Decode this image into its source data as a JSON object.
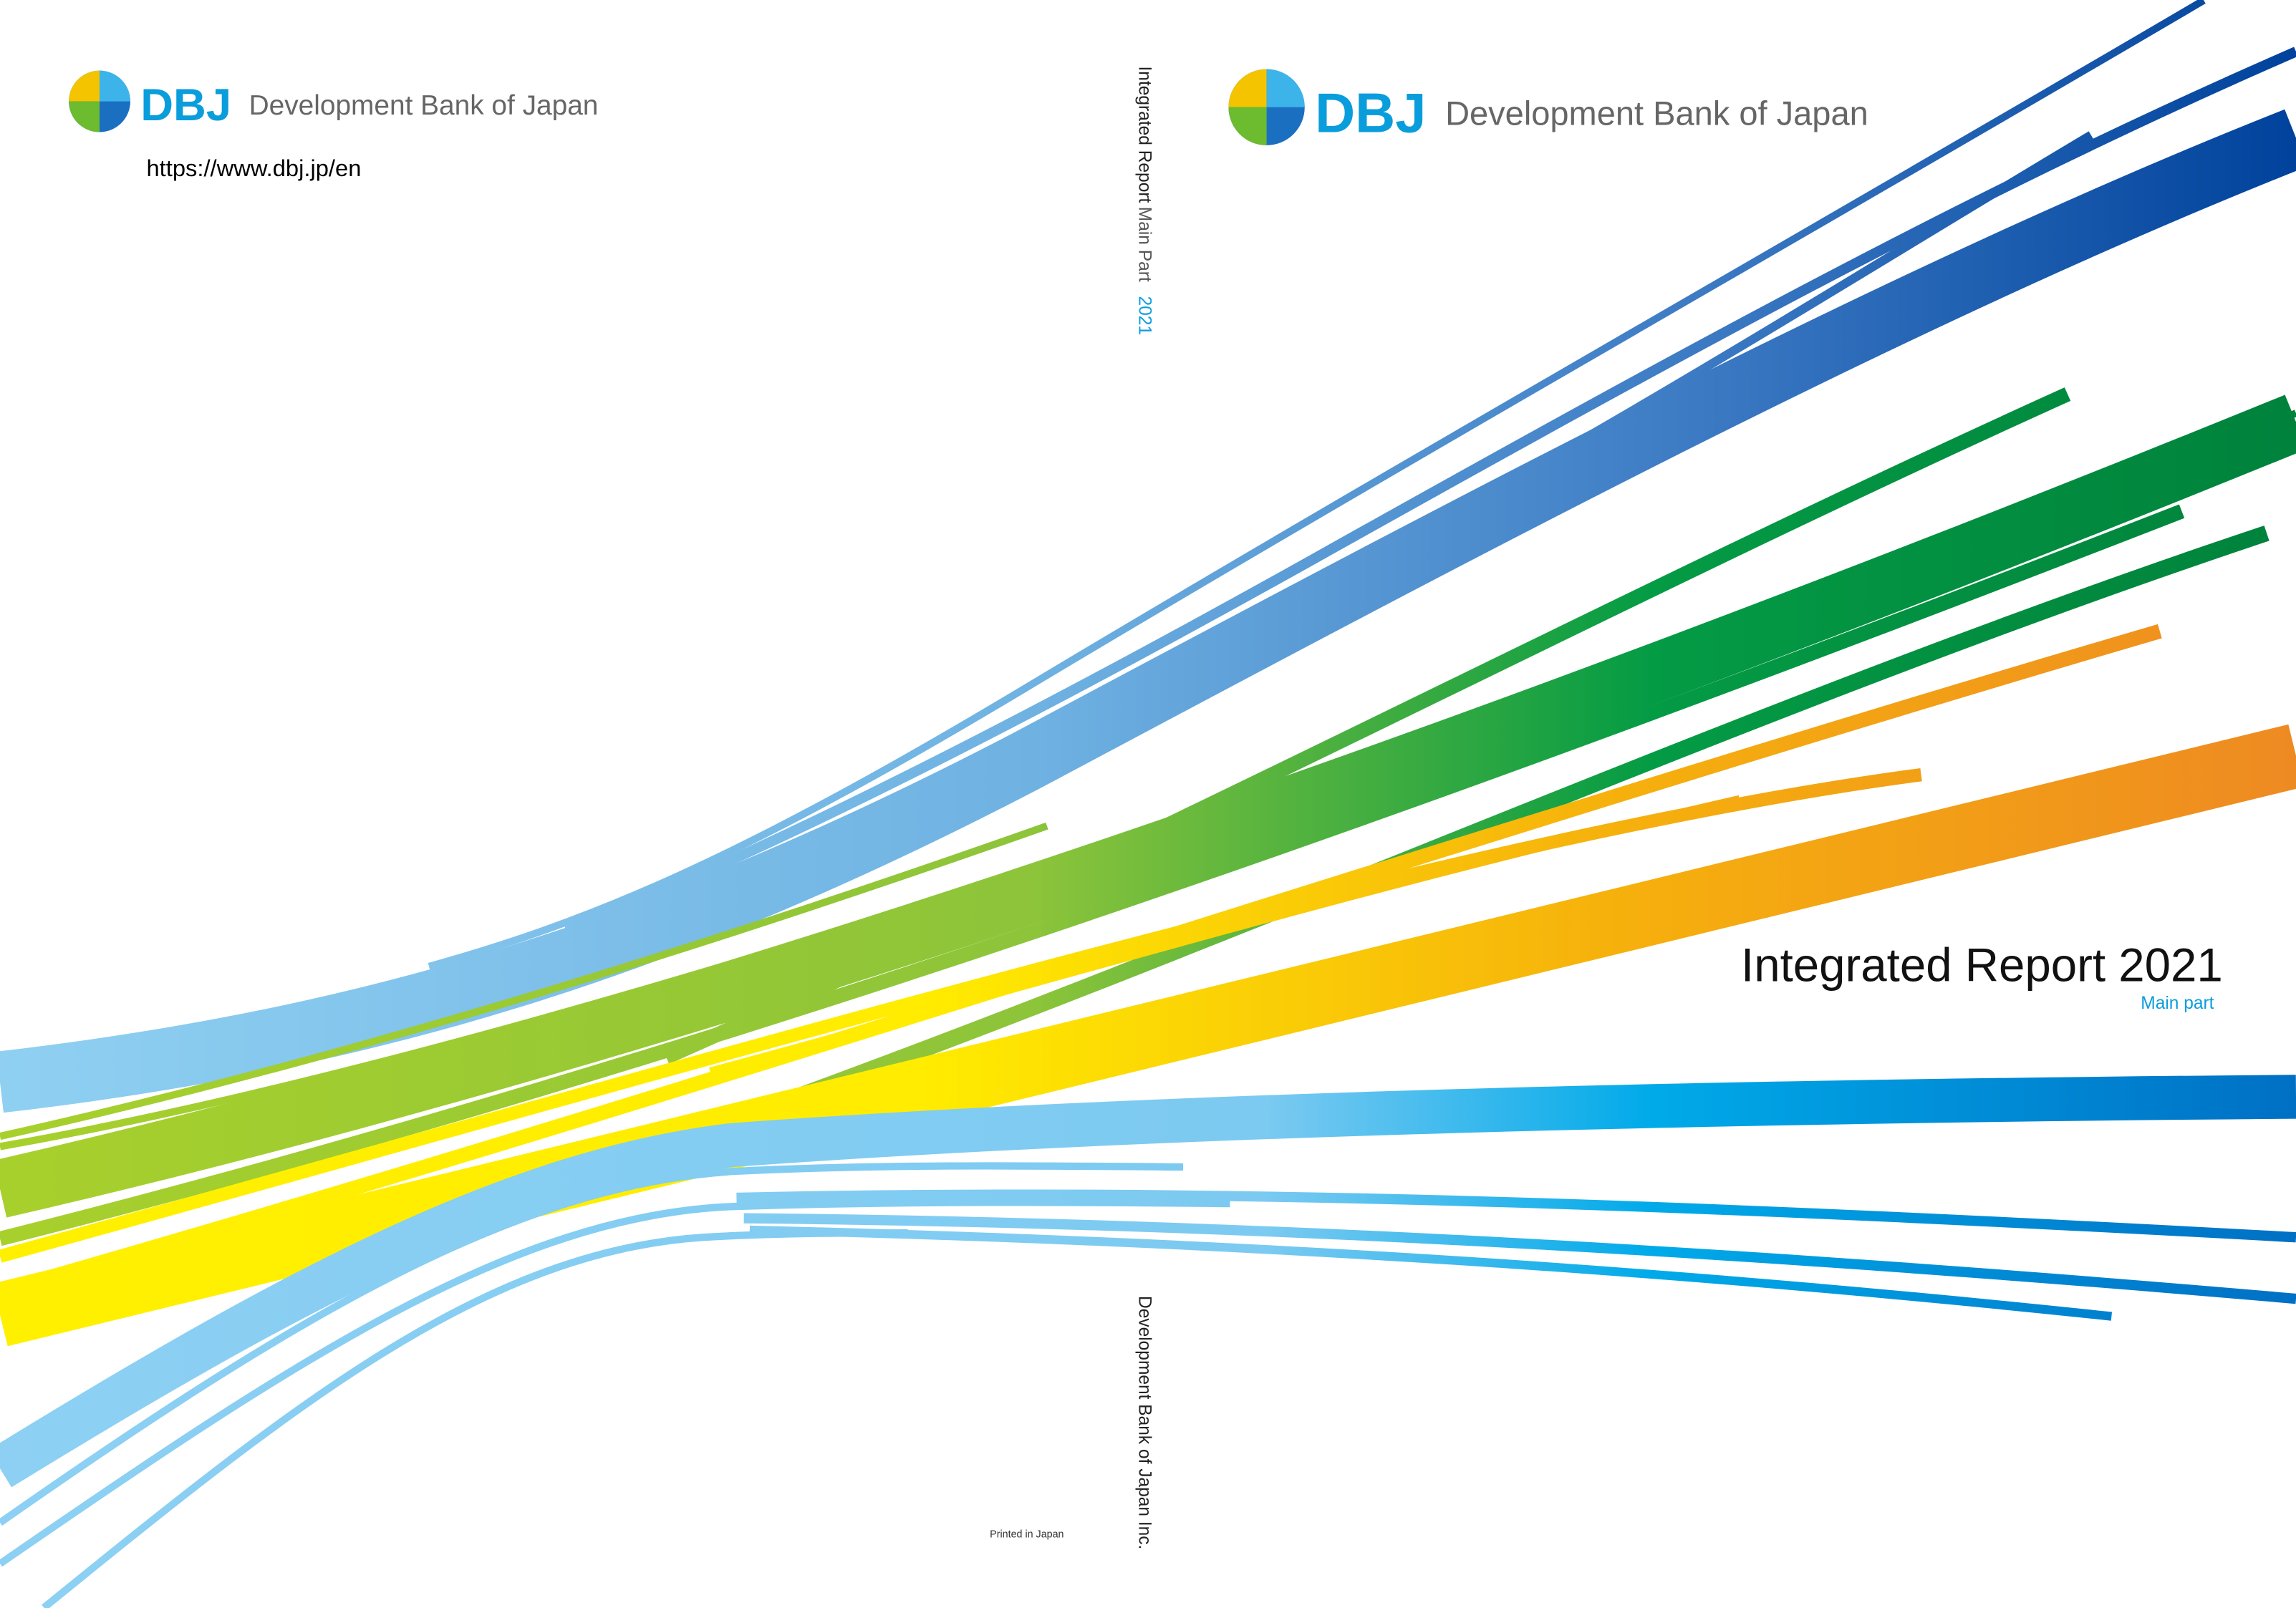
{
  "back_cover": {
    "logo_mark": "DBJ",
    "logo_name": "Development Bank of Japan",
    "url": "https://www.dbj.jp/en"
  },
  "spine": {
    "title": "Integrated Report",
    "part": "Main Part",
    "year": "2021",
    "publisher": "Development Bank of Japan Inc."
  },
  "imprint": "Printed in Japan",
  "front_cover": {
    "logo_mark": "DBJ",
    "logo_name": "Development Bank of Japan",
    "title": "Integrated Report 2021",
    "subtitle": "Main part"
  }
}
